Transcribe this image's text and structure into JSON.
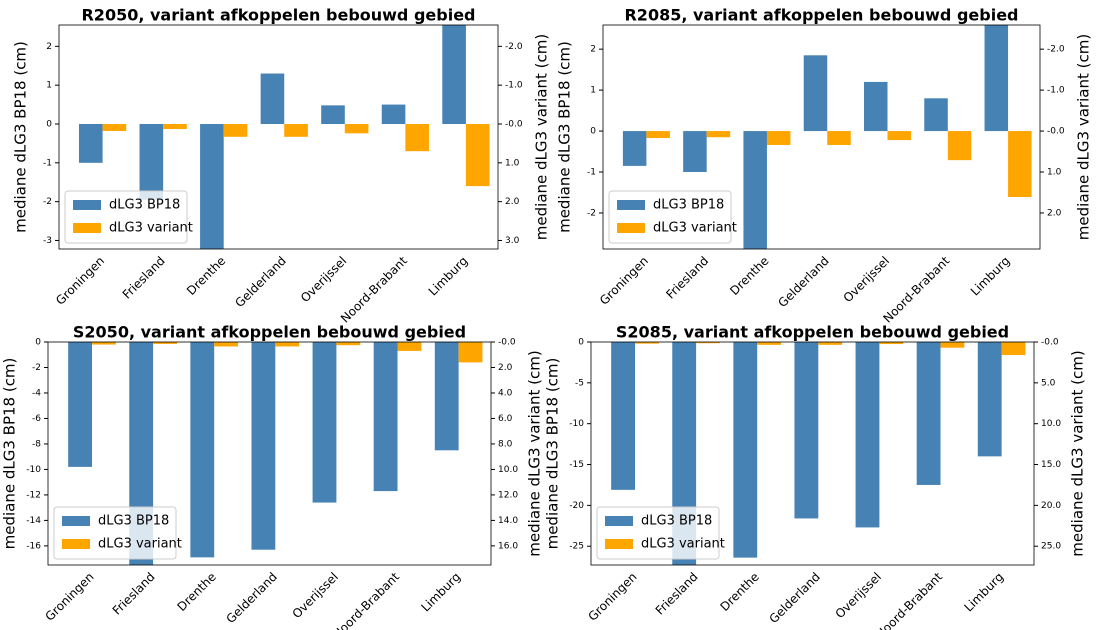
{
  "chart_data": [
    {
      "type": "bar",
      "title": "R2050, variant afkoppelen bebouwd gebied",
      "ylabel": "mediane dLG3 BP18 (cm)",
      "y2label": "mediane dLG3 variant (cm)",
      "categories": [
        "Groningen",
        "Friesland",
        "Drenthe",
        "Gelderland",
        "Overijssel",
        "Noord-Brabant",
        "Limburg"
      ],
      "series": [
        {
          "name": "dLG3 BP18",
          "color": "#4682b4",
          "values": [
            -1.0,
            -1.95,
            -3.5,
            1.3,
            0.48,
            0.5,
            2.8
          ]
        },
        {
          "name": "dLG3 variant",
          "color": "#ffa500",
          "axis": "y2",
          "values": [
            0.18,
            0.13,
            0.33,
            0.33,
            0.24,
            0.7,
            1.6
          ]
        }
      ],
      "ylim": [
        -3.22,
        2.55
      ],
      "yticks": [
        -3,
        -2,
        -1,
        0,
        1,
        2
      ],
      "y2lim": [
        3.22,
        -2.55
      ],
      "y2ticks": [
        {
          "value": -2,
          "label": "-2.0"
        },
        {
          "value": -1,
          "label": "-1.0"
        },
        {
          "value": 0,
          "label": "-0.0"
        },
        {
          "value": 1,
          "label": "1.0"
        },
        {
          "value": 2,
          "label": "2.0"
        },
        {
          "value": 3,
          "label": "3.0"
        }
      ],
      "legend": "lower left"
    },
    {
      "type": "bar",
      "title": "R2085, variant afkoppelen bebouwd gebied",
      "ylabel": "mediane dLG3 BP18 (cm)",
      "y2label": "mediane dLG3 variant (cm)",
      "categories": [
        "Groningen",
        "Friesland",
        "Drenthe",
        "Gelderland",
        "Overijssel",
        "Noord-Brabant",
        "Limburg"
      ],
      "series": [
        {
          "name": "dLG3 BP18",
          "color": "#4682b4",
          "values": [
            -0.85,
            -1.0,
            -3.2,
            1.85,
            1.2,
            0.8,
            2.8
          ]
        },
        {
          "name": "dLG3 variant",
          "color": "#ffa500",
          "axis": "y2",
          "values": [
            0.17,
            0.15,
            0.34,
            0.34,
            0.22,
            0.71,
            1.61
          ]
        }
      ],
      "ylim": [
        -2.88,
        2.59
      ],
      "yticks": [
        -2,
        -1,
        0,
        1,
        2
      ],
      "y2lim": [
        2.88,
        -2.59
      ],
      "y2ticks": [
        {
          "value": -2,
          "label": "-2.0"
        },
        {
          "value": -1,
          "label": "-1.0"
        },
        {
          "value": 0,
          "label": "-0.0"
        },
        {
          "value": 1,
          "label": "1.0"
        },
        {
          "value": 2,
          "label": "2.0"
        }
      ],
      "legend": "lower left"
    },
    {
      "type": "bar",
      "title": "S2050, variant afkoppelen bebouwd gebied",
      "ylabel": "mediane dLG3 BP18 (cm)",
      "y2label": "mediane dLG3 variant (cm)",
      "categories": [
        "Groningen",
        "Friesland",
        "Drenthe",
        "Gelderland",
        "Overijssel",
        "Noord-Brabant",
        "Limburg"
      ],
      "series": [
        {
          "name": "dLG3 BP18",
          "color": "#4682b4",
          "values": [
            -9.8,
            -18,
            -16.9,
            -16.3,
            -12.6,
            -11.7,
            -8.5
          ]
        },
        {
          "name": "dLG3 variant",
          "color": "#ffa500",
          "axis": "y2",
          "values": [
            0.2,
            0.15,
            0.35,
            0.35,
            0.25,
            0.7,
            1.6
          ]
        }
      ],
      "ylim": [
        -17.5,
        0
      ],
      "yticks": [
        -16,
        -14,
        -12,
        -10,
        -8,
        -6,
        -4,
        -2,
        0
      ],
      "y2lim": [
        17.5,
        0
      ],
      "y2ticks": [
        {
          "value": 0,
          "label": "-0.0"
        },
        {
          "value": 2,
          "label": "2.0"
        },
        {
          "value": 4,
          "label": "4.0"
        },
        {
          "value": 6,
          "label": "6.0"
        },
        {
          "value": 8,
          "label": "8.0"
        },
        {
          "value": 10,
          "label": "10.0"
        },
        {
          "value": 12,
          "label": "12.0"
        },
        {
          "value": 14,
          "label": "14.0"
        },
        {
          "value": 16,
          "label": "16.0"
        }
      ],
      "legend": "lower left"
    },
    {
      "type": "bar",
      "title": "S2085, variant afkoppelen bebouwd gebied",
      "ylabel": "mediane dLG3 BP18 (cm)",
      "y2label": "mediane dLG3 variant (cm)",
      "categories": [
        "Groningen",
        "Friesland",
        "Drenthe",
        "Gelderland",
        "Overijssel",
        "Noord-Brabant",
        "Limburg"
      ],
      "series": [
        {
          "name": "dLG3 BP18",
          "color": "#4682b4",
          "values": [
            -18.1,
            -28,
            -26.4,
            -21.6,
            -22.7,
            -17.5,
            -14.0
          ]
        },
        {
          "name": "dLG3 variant",
          "color": "#ffa500",
          "axis": "y2",
          "values": [
            0.2,
            0.15,
            0.35,
            0.35,
            0.25,
            0.7,
            1.6
          ]
        }
      ],
      "ylim": [
        -27.3,
        0
      ],
      "yticks": [
        -25,
        -20,
        -15,
        -10,
        -5,
        0
      ],
      "y2lim": [
        27.3,
        0
      ],
      "y2ticks": [
        {
          "value": 0,
          "label": "-0.0"
        },
        {
          "value": 5,
          "label": "5.0"
        },
        {
          "value": 10,
          "label": "10.0"
        },
        {
          "value": 15,
          "label": "15.0"
        },
        {
          "value": 20,
          "label": "20.0"
        },
        {
          "value": 25,
          "label": "25.0"
        }
      ],
      "legend": "lower left"
    }
  ]
}
